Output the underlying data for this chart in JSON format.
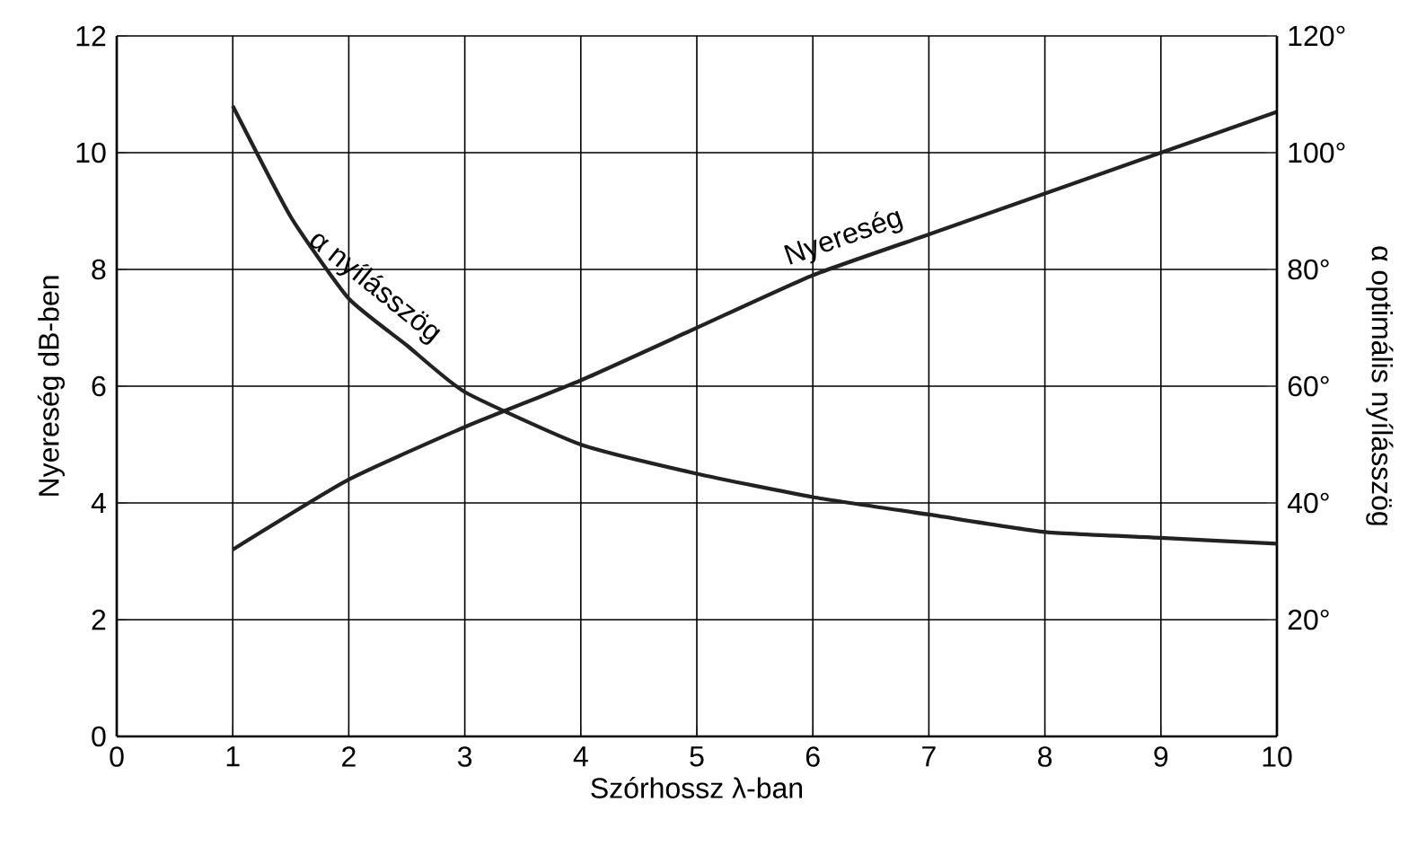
{
  "chart_data": {
    "type": "line",
    "xlabel": "Szórhossz λ-ban",
    "ylabel": "Nyereség dB-ben",
    "y2label": "α optimális nyílásszög",
    "grid": true,
    "xlim": [
      0,
      10
    ],
    "xticks": [
      0,
      1,
      2,
      3,
      4,
      5,
      6,
      7,
      8,
      9,
      10
    ],
    "ylim": [
      0,
      12
    ],
    "yticks": [
      0,
      2,
      4,
      6,
      8,
      10,
      12
    ],
    "y2lim": [
      0,
      120
    ],
    "y2ticks": [
      {
        "value": 20,
        "label": "20°"
      },
      {
        "value": 40,
        "label": "40°"
      },
      {
        "value": 60,
        "label": "60°"
      },
      {
        "value": 80,
        "label": "80°"
      },
      {
        "value": 100,
        "label": "100°"
      },
      {
        "value": 120,
        "label": "120°"
      }
    ],
    "series": [
      {
        "name": "Nyereség",
        "color": "#222222",
        "x": [
          1,
          2,
          3,
          4,
          5,
          6,
          7,
          8,
          9,
          10
        ],
        "values": [
          3.2,
          4.4,
          5.3,
          6.1,
          7.0,
          7.9,
          8.6,
          9.3,
          10.0,
          10.7
        ]
      },
      {
        "name": "α nyílásszög",
        "color": "#222222",
        "axis": "y2",
        "x": [
          1,
          1.5,
          2,
          2.5,
          3,
          4,
          5,
          6,
          7,
          8,
          9,
          10
        ],
        "values": [
          108,
          89,
          75,
          67,
          59,
          50,
          45,
          41,
          38,
          35,
          34,
          33
        ]
      }
    ]
  }
}
